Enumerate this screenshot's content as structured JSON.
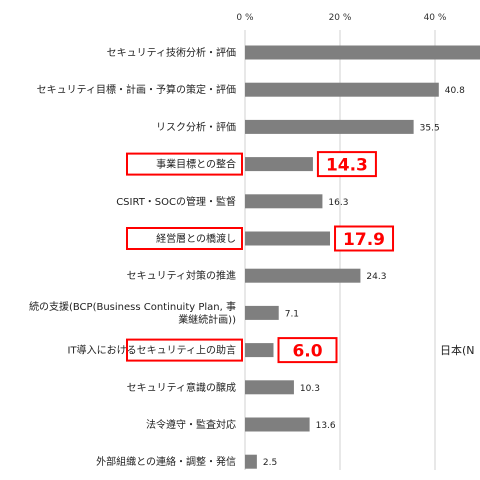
{
  "colors": {
    "bar": "#7f7f7f",
    "highlight": "#ff0000",
    "grid": "#d0d0d0"
  },
  "chart_data": {
    "type": "bar",
    "orientation": "horizontal",
    "xlim": [
      0,
      60
    ],
    "ticks": [
      {
        "value": 0,
        "label": "0 %"
      },
      {
        "value": 20,
        "label": "20 %"
      },
      {
        "value": 40,
        "label": "40 %"
      }
    ],
    "grid": true,
    "categories": [
      [
        "セキュリティ技術分析・評価"
      ],
      [
        "セキュリティ目標・計画・予算の策定・評価"
      ],
      [
        "リスク分析・評価"
      ],
      [
        "事業目標との整合"
      ],
      [
        "CSIRT・SOCの管理・監督"
      ],
      [
        "経営層との橋渡し"
      ],
      [
        "セキュリティ対策の推進"
      ],
      [
        "続の支援(BCP(Business Continuity Plan, 事",
        "業継続計画))"
      ],
      [
        "IT導入におけるセキュリティ上の助言"
      ],
      [
        "セキュリティ意識の醸成"
      ],
      [
        "法令遵守・監査対応"
      ],
      [
        "外部組織との連絡・調整・発信"
      ]
    ],
    "values": [
      52,
      40.8,
      35.5,
      14.3,
      16.3,
      17.9,
      24.3,
      7.1,
      6.0,
      10.3,
      13.6,
      2.5
    ],
    "value_labels": [
      "",
      "40.8",
      "35.5",
      "14.3",
      "16.3",
      "17.9",
      "24.3",
      "7.1",
      "6.0",
      "10.3",
      "13.6",
      "2.5"
    ],
    "highlighted": [
      false,
      false,
      false,
      true,
      false,
      true,
      false,
      false,
      true,
      false,
      false,
      false
    ],
    "legend": [
      "日本(N"
    ]
  }
}
